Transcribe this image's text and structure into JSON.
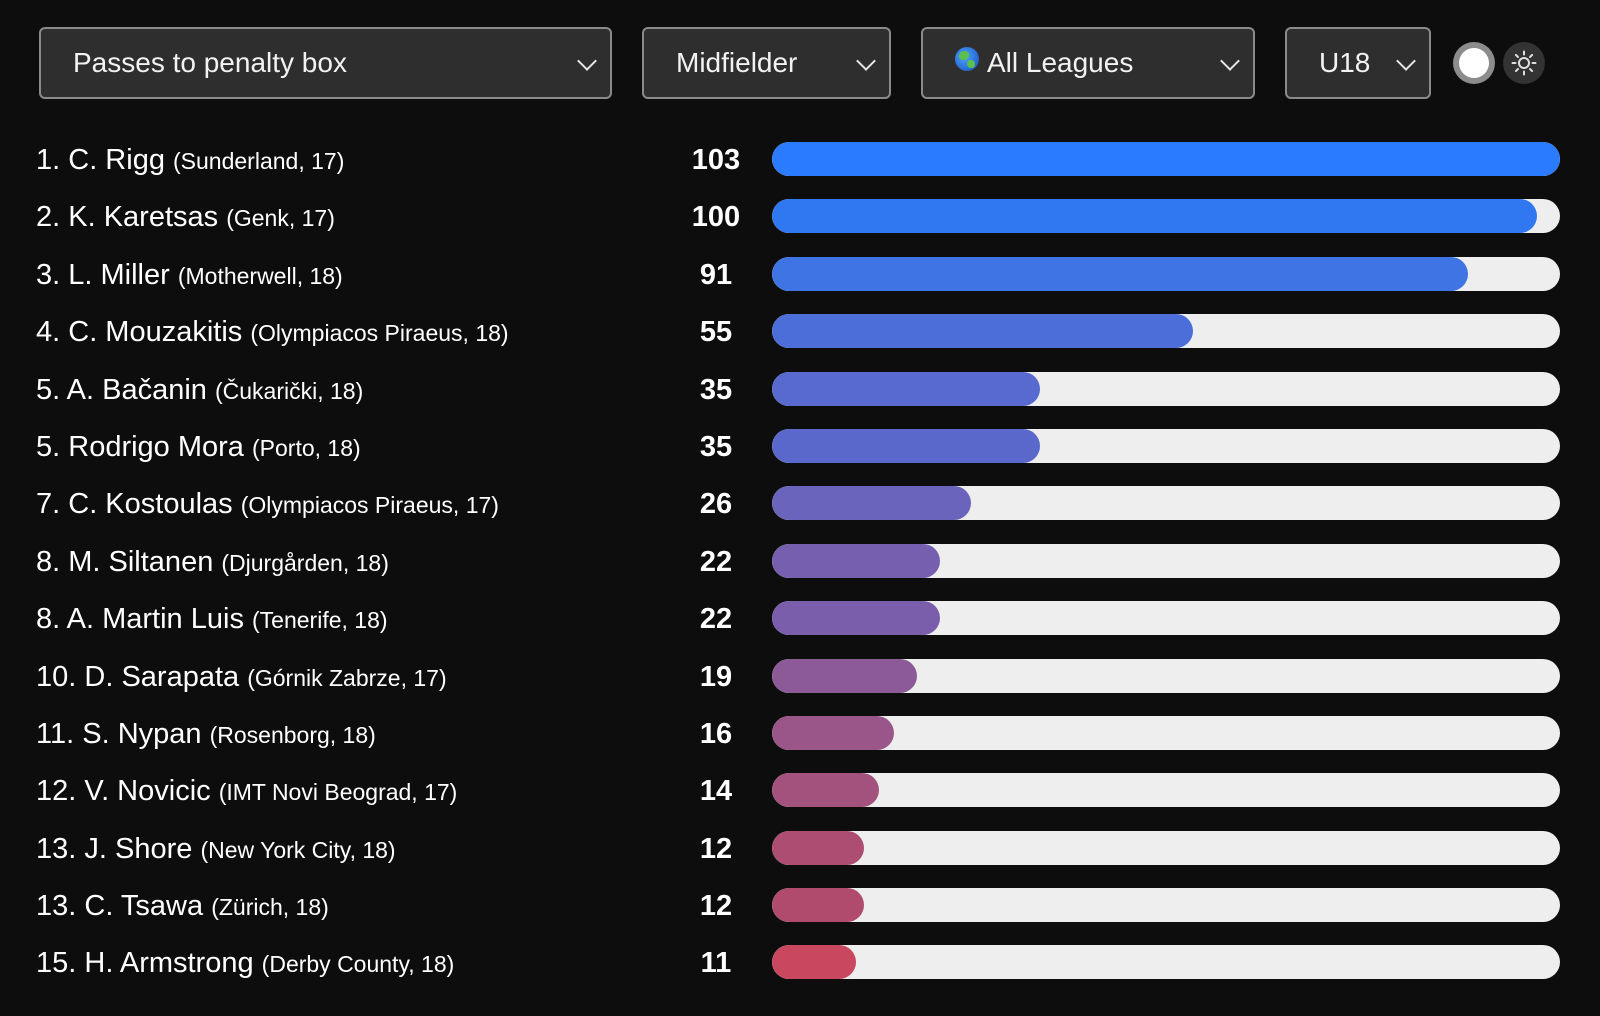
{
  "filters": {
    "metric": "Passes to penalty box",
    "position": "Midfielder",
    "league": "All Leagues",
    "age": "U18"
  },
  "icons": {
    "league": "globe-icon",
    "toggle": "toggle-icon",
    "theme": "sun-icon"
  },
  "max_value": 103,
  "rows": [
    {
      "rank": "1.",
      "player": "C. Rigg",
      "club": "(Sunderland, 17)",
      "value": "103",
      "bar_value": 103,
      "color": "#2a7bff"
    },
    {
      "rank": "2.",
      "player": "K. Karetsas",
      "club": "(Genk, 17)",
      "value": "100",
      "bar_value": 100,
      "color": "#2f78f2"
    },
    {
      "rank": "3.",
      "player": "L. Miller",
      "club": "(Motherwell, 18)",
      "value": "91",
      "bar_value": 91,
      "color": "#3e74e3"
    },
    {
      "rank": "4.",
      "player": "C. Mouzakitis",
      "club": "(Olympiacos Piraeus, 18)",
      "value": "55",
      "bar_value": 55,
      "color": "#4c6ed8"
    },
    {
      "rank": "5.",
      "player": "A. Bačanin",
      "club": "(Čukarički, 18)",
      "value": "35",
      "bar_value": 35,
      "color": "#586acf"
    },
    {
      "rank": "5.",
      "player": "Rodrigo Mora",
      "club": "(Porto, 18)",
      "value": "35",
      "bar_value": 35,
      "color": "#5a68cc"
    },
    {
      "rank": "7.",
      "player": "C. Kostoulas",
      "club": "(Olympiacos Piraeus, 17)",
      "value": "26",
      "bar_value": 26,
      "color": "#6b64bd"
    },
    {
      "rank": "8.",
      "player": "M. Siltanen",
      "club": "(Djurgården, 18)",
      "value": "22",
      "bar_value": 22,
      "color": "#775faf"
    },
    {
      "rank": "8.",
      "player": "A. Martin Luis",
      "club": "(Tenerife, 18)",
      "value": "22",
      "bar_value": 22,
      "color": "#7a5eab"
    },
    {
      "rank": "10.",
      "player": "D. Sarapata",
      "club": "(Górnik Zabrze, 17)",
      "value": "19",
      "bar_value": 19,
      "color": "#8d5a98"
    },
    {
      "rank": "11.",
      "player": "S. Nypan",
      "club": "(Rosenborg, 18)",
      "value": "16",
      "bar_value": 16,
      "color": "#9a5688"
    },
    {
      "rank": "12.",
      "player": "V. Novicic",
      "club": "(IMT Novi Beograd, 17)",
      "value": "14",
      "bar_value": 14,
      "color": "#a2527c"
    },
    {
      "rank": "13.",
      "player": "J. Shore",
      "club": "(New York City, 18)",
      "value": "12",
      "bar_value": 12,
      "color": "#ad4d72"
    },
    {
      "rank": "13.",
      "player": "C. Tsawa",
      "club": "(Zürich, 18)",
      "value": "12",
      "bar_value": 12,
      "color": "#b04b6e"
    },
    {
      "rank": "15.",
      "player": "H. Armstrong",
      "club": "(Derby County, 18)",
      "value": "11",
      "bar_value": 11,
      "color": "#c9475f"
    }
  ]
}
